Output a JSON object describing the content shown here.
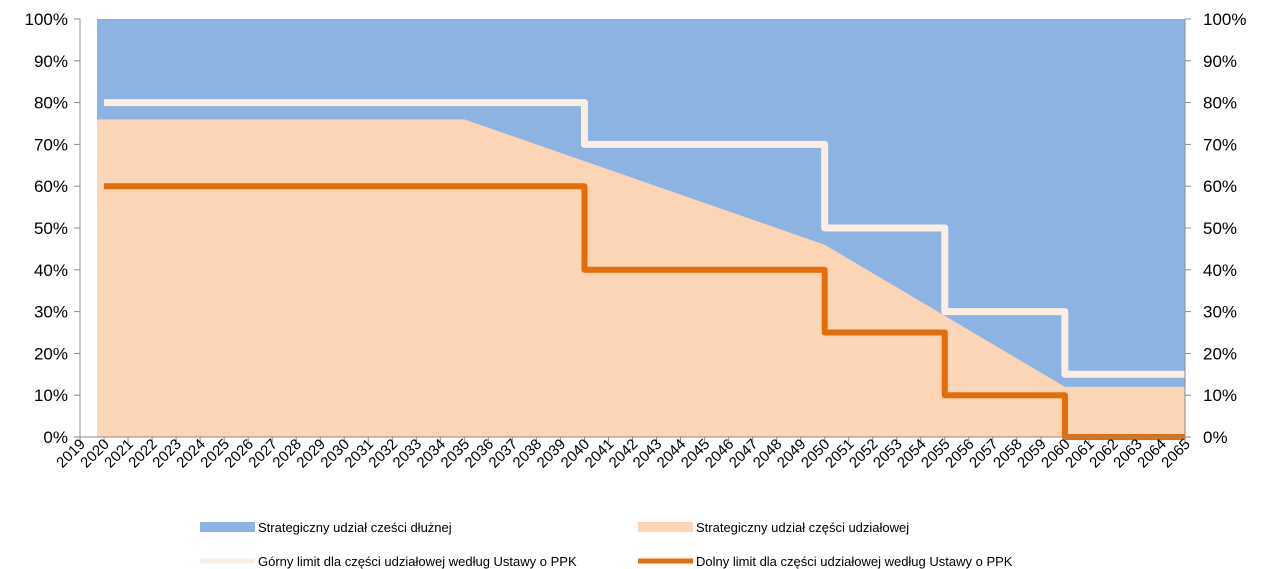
{
  "chart_data": {
    "type": "area",
    "x": [
      2019,
      2020,
      2021,
      2022,
      2023,
      2024,
      2025,
      2026,
      2027,
      2028,
      2029,
      2030,
      2031,
      2032,
      2033,
      2034,
      2035,
      2036,
      2037,
      2038,
      2039,
      2040,
      2041,
      2042,
      2043,
      2044,
      2045,
      2046,
      2047,
      2048,
      2049,
      2050,
      2051,
      2052,
      2053,
      2054,
      2055,
      2056,
      2057,
      2058,
      2059,
      2060,
      2061,
      2062,
      2063,
      2064,
      2065
    ],
    "x_tick_labels": [
      "2019",
      "2020",
      "2021",
      "2022",
      "2023",
      "2024",
      "2025",
      "2026",
      "2027",
      "2028",
      "2029",
      "2030",
      "2031",
      "2032",
      "2033",
      "2034",
      "2035",
      "2036",
      "2037",
      "2038",
      "2039",
      "2040",
      "2041",
      "2042",
      "2043",
      "2044",
      "2045",
      "2046",
      "2047",
      "2048",
      "2049",
      "2050",
      "2051",
      "2052",
      "2053",
      "2054",
      "2055",
      "2056",
      "2057",
      "2058",
      "2059",
      "2060",
      "2061",
      "2062",
      "2063",
      "2064",
      "2065"
    ],
    "y_tick_labels": [
      "0%",
      "10%",
      "20%",
      "30%",
      "40%",
      "50%",
      "60%",
      "70%",
      "80%",
      "90%",
      "100%"
    ],
    "ylim": [
      0,
      100
    ],
    "y_unit": "%",
    "secondary_y_axis": true,
    "grid": false,
    "legend_position": "bottom",
    "colors": {
      "debt": "#8db3e2",
      "equity": "#fbd5b5",
      "upper": "#fdeee4",
      "lower": "#e46c0a"
    },
    "series": [
      {
        "key": "debt",
        "name": "Strategiczny udział cześci dłużnej",
        "kind": "area",
        "note": "fills remainder up to 100%",
        "x": [
          2020,
          2065
        ],
        "y": [
          100,
          100
        ]
      },
      {
        "key": "equity",
        "name": "Strategiczny udział części udziałowej",
        "kind": "area",
        "x": [
          2020,
          2035,
          2040,
          2050,
          2055,
          2060,
          2065
        ],
        "y": [
          76,
          76,
          66,
          46,
          29,
          12,
          12
        ]
      },
      {
        "key": "upper",
        "name": "Górny limit dla części udziałowej według Ustawy o PPK",
        "kind": "step",
        "x": [
          2020,
          2040,
          2050,
          2055,
          2060,
          2065
        ],
        "y": [
          80,
          70,
          50,
          30,
          15,
          15
        ]
      },
      {
        "key": "lower",
        "name": "Dolny limit dla części udziałowej według Ustawy o PPK",
        "kind": "step",
        "x": [
          2020,
          2040,
          2050,
          2055,
          2060,
          2065
        ],
        "y": [
          60,
          40,
          25,
          10,
          0,
          0
        ]
      }
    ]
  }
}
